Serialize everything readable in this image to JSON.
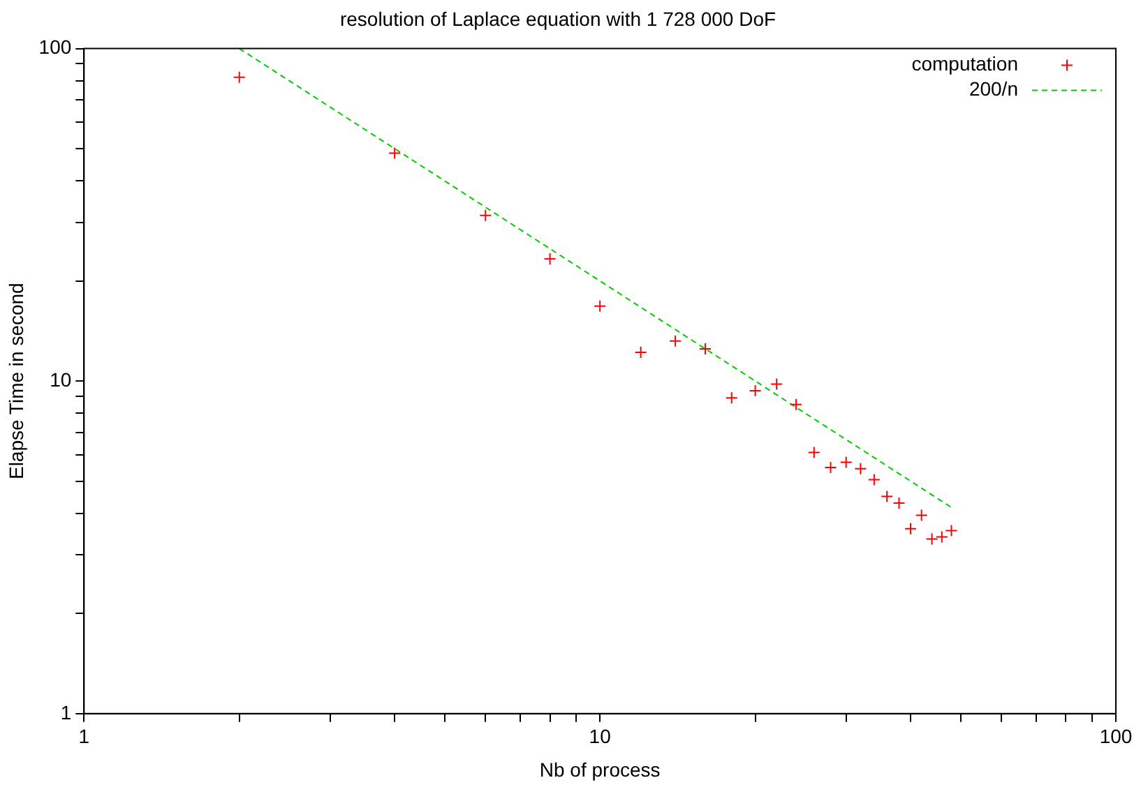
{
  "chart_data": {
    "type": "scatter",
    "title": "resolution of Laplace equation with 1 728 000 DoF",
    "xlabel": "Nb of process",
    "ylabel": "Elapse Time in second",
    "log": "xy",
    "xlim": [
      1,
      100
    ],
    "ylim": [
      1,
      100
    ],
    "xticks": [
      1,
      {
        "value": 2,
        "label": null
      },
      {
        "value": 3,
        "label": null
      },
      {
        "value": 4,
        "label": null
      },
      {
        "value": 5,
        "label": null
      },
      {
        "value": 6,
        "label": null
      },
      {
        "value": 7,
        "label": null
      },
      {
        "value": 8,
        "label": null
      },
      {
        "value": 9,
        "label": null
      },
      10,
      {
        "value": 20,
        "label": null
      },
      {
        "value": 30,
        "label": null
      },
      {
        "value": 40,
        "label": null
      },
      {
        "value": 50,
        "label": null
      },
      {
        "value": 60,
        "label": null
      },
      {
        "value": 70,
        "label": null
      },
      {
        "value": 80,
        "label": null
      },
      {
        "value": 90,
        "label": null
      },
      100
    ],
    "yticks": [
      1,
      {
        "value": 2,
        "label": null
      },
      {
        "value": 3,
        "label": null
      },
      {
        "value": 4,
        "label": null
      },
      {
        "value": 5,
        "label": null
      },
      {
        "value": 6,
        "label": null
      },
      {
        "value": 7,
        "label": null
      },
      {
        "value": 8,
        "label": null
      },
      {
        "value": 9,
        "label": null
      },
      10,
      {
        "value": 20,
        "label": null
      },
      {
        "value": 30,
        "label": null
      },
      {
        "value": 40,
        "label": null
      },
      {
        "value": 50,
        "label": null
      },
      {
        "value": 60,
        "label": null
      },
      {
        "value": 70,
        "label": null
      },
      {
        "value": 80,
        "label": null
      },
      {
        "value": 90,
        "label": null
      },
      100
    ],
    "grid": false,
    "legend": "top right",
    "series": [
      {
        "name": "computation",
        "type": "scatter",
        "marker": "cross",
        "color": "#ff0000",
        "x": [
          2,
          4,
          6,
          8,
          10,
          12,
          14,
          16,
          18,
          20,
          22,
          24,
          26,
          28,
          30,
          32,
          34,
          36,
          38,
          40,
          42,
          44,
          46,
          48
        ],
        "values": [
          82,
          48.5,
          31.5,
          23.3,
          16.8,
          12.2,
          13.2,
          12.5,
          8.9,
          9.35,
          9.8,
          8.5,
          6.1,
          5.5,
          5.7,
          5.45,
          5.05,
          4.5,
          4.3,
          3.6,
          3.95,
          3.35,
          3.4,
          3.55
        ]
      },
      {
        "name": "200/n",
        "type": "line",
        "marker": "none",
        "line_style": "dashed",
        "color": "#00cc00",
        "x": [
          2,
          48
        ],
        "values": [
          100,
          4.17
        ]
      }
    ]
  }
}
